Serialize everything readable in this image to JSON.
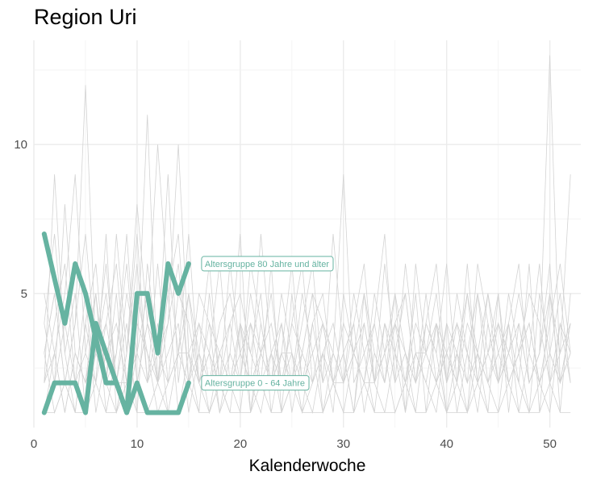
{
  "chart_title": "Region Uri",
  "chart_data": {
    "type": "line",
    "title": "Region Uri",
    "xlabel": "Kalenderwoche",
    "ylabel": "",
    "xlim": [
      0,
      53
    ],
    "ylim": [
      0.5,
      13.5
    ],
    "x_ticks": [
      0,
      10,
      20,
      30,
      40,
      50
    ],
    "y_ticks": [
      5,
      10
    ],
    "grid": true,
    "legend": "none",
    "highlight_color": "#66b3a1",
    "background_color": "#d3d3d3",
    "highlight_series": [
      {
        "name": "Altersgruppe 80 Jahre und älter",
        "x": [
          1,
          2,
          3,
          4,
          5,
          6,
          7,
          8,
          9,
          10,
          11,
          12,
          13,
          14,
          15
        ],
        "y": [
          7,
          5.5,
          4,
          6,
          5,
          3.5,
          2,
          2,
          1,
          5,
          5,
          3,
          6,
          5,
          6
        ]
      },
      {
        "name": "Altersgruppe 0 - 64 Jahre",
        "x": [
          1,
          2,
          3,
          4,
          5,
          6,
          7,
          8,
          9,
          10,
          11,
          12,
          13,
          14,
          15
        ],
        "y": [
          1,
          2,
          2,
          2,
          1,
          4,
          3,
          2,
          1,
          2,
          1,
          1,
          1,
          1,
          2
        ]
      }
    ],
    "background_series": [
      {
        "x": [
          1,
          2,
          3,
          4,
          5,
          6,
          7,
          8,
          9,
          10,
          11,
          12,
          13,
          14,
          15,
          16,
          17,
          18,
          19,
          20,
          21,
          22,
          23,
          24,
          25,
          26,
          27,
          28,
          29,
          30,
          31,
          32,
          33,
          34,
          35,
          36,
          37,
          38,
          39,
          40,
          41,
          42,
          43,
          44,
          45,
          46,
          47,
          48,
          49,
          50,
          51,
          52
        ],
        "y": [
          3,
          5,
          2,
          4,
          12,
          3,
          2,
          1,
          3,
          8,
          4,
          10,
          5,
          7,
          2,
          3,
          1,
          2,
          4,
          5,
          3,
          2,
          6,
          1,
          2,
          3,
          5,
          1,
          3,
          2,
          4,
          6,
          2,
          1,
          3,
          5,
          2,
          4,
          3,
          1,
          2,
          5,
          3,
          2,
          1,
          4,
          6,
          2,
          3,
          13,
          2,
          4
        ]
      },
      {
        "x": [
          1,
          2,
          3,
          4,
          5,
          6,
          7,
          8,
          9,
          10,
          11,
          12,
          13,
          14,
          15,
          16,
          17,
          18,
          19,
          20,
          21,
          22,
          23,
          24,
          25,
          26,
          27,
          28,
          29,
          30,
          31,
          32,
          33,
          34,
          35,
          36,
          37,
          38,
          39,
          40,
          41,
          42,
          43,
          44,
          45,
          46,
          47,
          48,
          49,
          50,
          51,
          52
        ],
        "y": [
          2,
          9,
          3,
          1,
          4,
          6,
          2,
          5,
          1,
          3,
          11,
          2,
          6,
          3,
          7,
          2,
          4,
          1,
          3,
          2,
          6,
          4,
          2,
          5,
          3,
          1,
          4,
          2,
          7,
          3,
          1,
          5,
          2,
          4,
          3,
          1,
          6,
          3,
          2,
          4,
          1,
          3,
          5,
          2,
          4,
          3,
          2,
          6,
          1,
          5,
          3,
          9
        ]
      },
      {
        "x": [
          1,
          2,
          3,
          4,
          5,
          6,
          7,
          8,
          9,
          10,
          11,
          12,
          13,
          14,
          15,
          16,
          17,
          18,
          19,
          20,
          21,
          22,
          23,
          24,
          25,
          26,
          27,
          28,
          29,
          30,
          31,
          32,
          33,
          34,
          35,
          36,
          37,
          38,
          39,
          40,
          41,
          42,
          43,
          44,
          45,
          46,
          47,
          48,
          49,
          50,
          51,
          52
        ],
        "y": [
          4,
          2,
          8,
          3,
          2,
          5,
          1,
          3,
          7,
          2,
          4,
          3,
          9,
          2,
          5,
          3,
          6,
          2,
          1,
          4,
          2,
          7,
          3,
          2,
          4,
          6,
          2,
          3,
          1,
          5,
          3,
          2,
          4,
          7,
          2,
          3,
          1,
          4,
          6,
          2,
          3,
          1,
          5,
          3,
          2,
          4,
          1,
          3,
          6,
          2,
          4,
          3
        ]
      },
      {
        "x": [
          1,
          2,
          3,
          4,
          5,
          6,
          7,
          8,
          9,
          10,
          11,
          12,
          13,
          14,
          15,
          16,
          17,
          18,
          19,
          20,
          21,
          22,
          23,
          24,
          25,
          26,
          27,
          28,
          29,
          30,
          31,
          32,
          33,
          34,
          35,
          36,
          37,
          38,
          39,
          40,
          41,
          42,
          43,
          44,
          45,
          46,
          47,
          48,
          49,
          50,
          51,
          52
        ],
        "y": [
          1,
          3,
          5,
          9,
          3,
          2,
          4,
          6,
          2,
          5,
          3,
          2,
          4,
          10,
          3,
          1,
          5,
          2,
          3,
          7,
          1,
          4,
          2,
          3,
          6,
          2,
          4,
          5,
          2,
          1,
          3,
          4,
          2,
          6,
          3,
          2,
          5,
          1,
          4,
          3,
          2,
          6,
          2,
          3,
          5,
          1,
          4,
          2,
          3,
          6,
          1,
          5
        ]
      },
      {
        "x": [
          1,
          2,
          3,
          4,
          5,
          6,
          7,
          8,
          9,
          10,
          11,
          12,
          13,
          14,
          15,
          16,
          17,
          18,
          19,
          20,
          21,
          22,
          23,
          24,
          25,
          26,
          27,
          28,
          29,
          30,
          31,
          32,
          33,
          34,
          35,
          36,
          37,
          38,
          39,
          40,
          41,
          42,
          43,
          44,
          45,
          46,
          47,
          48,
          49,
          50,
          51,
          52
        ],
        "y": [
          3,
          1,
          2,
          4,
          7,
          3,
          5,
          2,
          4,
          1,
          6,
          3,
          2,
          5,
          4,
          2,
          3,
          6,
          2,
          4,
          3,
          5,
          1,
          3,
          2,
          4,
          6,
          2,
          3,
          9,
          2,
          3,
          4,
          2,
          5,
          3,
          2,
          4,
          3,
          6,
          2,
          4,
          3,
          1,
          5,
          2,
          3,
          4,
          2,
          3,
          5,
          2
        ]
      },
      {
        "x": [
          1,
          2,
          3,
          4,
          5,
          6,
          7,
          8,
          9,
          10,
          11,
          12,
          13,
          14,
          15,
          16,
          17,
          18,
          19,
          20,
          21,
          22,
          23,
          24,
          25,
          26,
          27,
          28,
          29,
          30,
          31,
          32,
          33,
          34,
          35,
          36,
          37,
          38,
          39,
          40,
          41,
          42,
          43,
          44,
          45,
          46,
          47,
          48,
          49,
          50,
          51,
          52
        ],
        "y": [
          5,
          3,
          1,
          3,
          2,
          4,
          2,
          7,
          3,
          6,
          2,
          4,
          1,
          3,
          2,
          5,
          4,
          3,
          2,
          1,
          4,
          3,
          5,
          2,
          4,
          3,
          2,
          4,
          3,
          2,
          5,
          3,
          1,
          4,
          2,
          6,
          3,
          2,
          1,
          4,
          3,
          2,
          6,
          4,
          2,
          3,
          5,
          3,
          2,
          4,
          6,
          3
        ]
      },
      {
        "x": [
          1,
          2,
          3,
          4,
          5,
          6,
          7,
          8,
          9,
          10,
          11,
          12,
          13,
          14,
          15,
          16,
          17,
          18,
          19,
          20,
          21,
          22,
          23,
          24,
          25,
          26,
          27,
          28,
          29,
          30,
          31,
          32,
          33,
          34,
          35,
          36,
          37,
          38,
          39,
          40,
          41,
          42,
          43,
          44,
          45,
          46,
          47,
          48,
          49,
          50,
          51,
          52
        ],
        "y": [
          2,
          4,
          6,
          2,
          5,
          1,
          3,
          4,
          2,
          3,
          5,
          2,
          3,
          4,
          1,
          3,
          2,
          4,
          5,
          3,
          2,
          1,
          3,
          4,
          2,
          5,
          3,
          1,
          2,
          4,
          3,
          2,
          5,
          3,
          4,
          2,
          4,
          3,
          5,
          2,
          4,
          3,
          2,
          5,
          3,
          4,
          2,
          1,
          5,
          3,
          2,
          4
        ]
      },
      {
        "x": [
          1,
          2,
          3,
          4,
          5,
          6,
          7,
          8,
          9,
          10,
          11,
          12,
          13,
          14,
          15,
          16,
          17,
          18,
          19,
          20,
          21,
          22,
          23,
          24,
          25,
          26,
          27,
          28,
          29,
          30,
          31,
          32,
          33,
          34,
          35,
          36,
          37,
          38,
          39,
          40,
          41,
          42,
          43,
          44,
          45,
          46,
          47,
          48,
          49,
          50,
          51,
          52
        ],
        "y": [
          4,
          7,
          3,
          5,
          1,
          3,
          6,
          2,
          5,
          3,
          2,
          6,
          2,
          3,
          5,
          2,
          1,
          3,
          4,
          2,
          5,
          3,
          2,
          4,
          1,
          3,
          5,
          4,
          2,
          3,
          1,
          4,
          2,
          3,
          5,
          1,
          3,
          2,
          4,
          2,
          5,
          3,
          1,
          4,
          2,
          5,
          3,
          4,
          2,
          1,
          4,
          2
        ]
      },
      {
        "x": [
          1,
          2,
          3,
          4,
          5,
          6,
          7,
          8,
          9,
          10,
          11,
          12,
          13,
          14,
          15,
          16,
          17,
          18,
          19,
          20,
          21,
          22,
          23,
          24,
          25,
          26,
          27,
          28,
          29,
          30,
          31,
          32,
          33,
          34,
          35,
          36,
          37,
          38,
          39,
          40,
          41,
          42,
          43,
          44,
          45,
          46,
          47,
          48,
          49,
          50,
          51,
          52
        ],
        "y": [
          1,
          2,
          4,
          2,
          3,
          5,
          2,
          3,
          6,
          2,
          4,
          2,
          5,
          1,
          3,
          4,
          2,
          3,
          2,
          4,
          1,
          3,
          4,
          2,
          3,
          1,
          2,
          3,
          4,
          2,
          3,
          5,
          3,
          2,
          4,
          3,
          2,
          5,
          2,
          3,
          4,
          2,
          3,
          5,
          2,
          3,
          4,
          2,
          3,
          5,
          2,
          3
        ]
      },
      {
        "x": [
          1,
          2,
          3,
          4,
          5,
          6,
          7,
          8,
          9,
          10,
          11,
          12,
          13,
          14,
          15,
          16,
          17,
          18,
          19,
          20,
          21,
          22,
          23,
          24,
          25,
          26,
          27,
          28,
          29,
          30,
          31,
          32,
          33,
          34,
          35,
          36,
          37,
          38,
          39,
          40,
          41,
          42,
          43,
          44,
          45,
          46,
          47,
          48,
          49,
          50,
          51,
          52
        ],
        "y": [
          3,
          5,
          2,
          1,
          4,
          2,
          7,
          1,
          3,
          7,
          2,
          3,
          4,
          6,
          2,
          4,
          3,
          2,
          6,
          3,
          4,
          2,
          3,
          1,
          5,
          2,
          3,
          4,
          2,
          3,
          4,
          1,
          3,
          2,
          4,
          5,
          2,
          3,
          4,
          1,
          3,
          5,
          2,
          3,
          4,
          2,
          3,
          5,
          4,
          2,
          3,
          4
        ]
      },
      {
        "x": [
          1,
          2,
          3,
          4,
          5,
          6,
          7,
          8,
          9,
          10,
          11,
          12,
          13,
          14,
          15,
          16,
          17,
          18,
          19,
          20,
          21,
          22,
          23,
          24,
          25,
          26,
          27,
          28,
          29,
          30,
          31,
          32,
          33,
          34,
          35,
          36,
          37,
          38,
          39,
          40,
          41,
          42,
          43,
          44,
          45,
          46,
          47,
          48,
          49,
          50,
          51,
          52
        ],
        "y": [
          2,
          3,
          1,
          3,
          2,
          3,
          4,
          2,
          2,
          4,
          3,
          1,
          2,
          3,
          3,
          2,
          3,
          1,
          2,
          3,
          2,
          3,
          2,
          3,
          3,
          2,
          1,
          3,
          2,
          2,
          3,
          2,
          2,
          3,
          1,
          2,
          3,
          3,
          2,
          3,
          2,
          1,
          3,
          2,
          3,
          2,
          3,
          1,
          2,
          3,
          2,
          3
        ]
      },
      {
        "x": [
          1,
          2,
          3,
          4,
          5,
          6,
          7,
          8,
          9,
          10,
          11,
          12,
          13,
          14,
          15,
          16,
          17,
          18,
          19,
          20,
          21,
          22,
          23,
          24,
          25,
          26,
          27,
          28,
          29,
          30,
          31,
          32,
          33,
          34,
          35,
          36,
          37,
          38,
          39,
          40,
          41,
          42,
          43,
          44,
          45,
          46,
          47,
          48,
          49,
          50,
          51,
          52
        ],
        "y": [
          1,
          1,
          2,
          1,
          1,
          2,
          1,
          1,
          2,
          1,
          1,
          2,
          1,
          1,
          2,
          1,
          1,
          2,
          1,
          1,
          1,
          2,
          1,
          1,
          2,
          1,
          1,
          1,
          2,
          1,
          1,
          2,
          1,
          1,
          1,
          2,
          1,
          1,
          2,
          1,
          1,
          1,
          2,
          1,
          1,
          2,
          1,
          1,
          1,
          2,
          1,
          1
        ]
      }
    ]
  }
}
